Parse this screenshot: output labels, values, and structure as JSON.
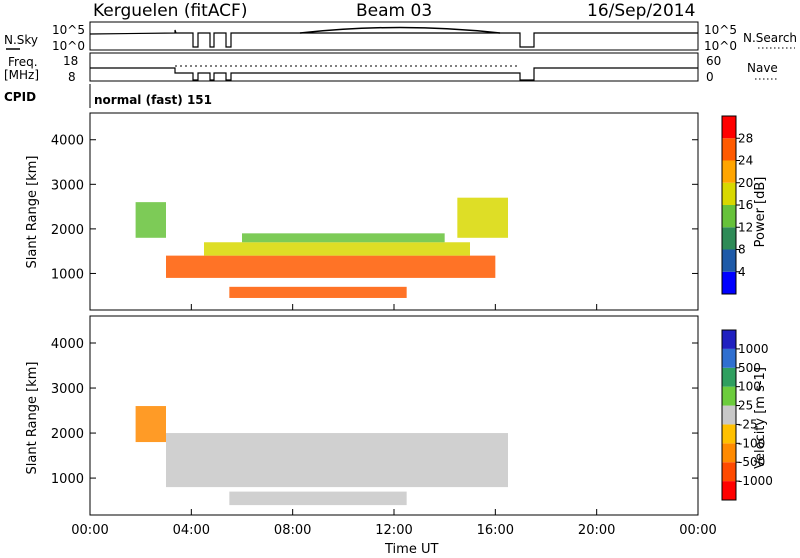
{
  "header": {
    "station": "Kerguelen (fitACF)",
    "beam": "Beam 03",
    "date": "16/Sep/2014"
  },
  "noise_panel": {
    "left_label": "N.Sky",
    "left_ticks": [
      "10^5",
      "10^0"
    ],
    "right_label": "N.Search",
    "right_ticks": [
      "10^5",
      "10^0"
    ]
  },
  "freq_panel": {
    "left_label_1": "Freq.",
    "left_label_2": "[MHz]",
    "left_ticks": [
      "18",
      "8"
    ],
    "right_label": "Nave",
    "right_ticks": [
      "60",
      "0"
    ]
  },
  "cpid": {
    "label": "CPID",
    "value": "normal (fast) 151"
  },
  "colors": {
    "power_scale": [
      "#0000ff",
      "#1e5aa8",
      "#2e8b57",
      "#66c23a",
      "#d8d800",
      "#ffa500",
      "#ff5a00",
      "#ff0000"
    ],
    "velocity_scale": [
      "#2020c0",
      "#2f6fd0",
      "#2f9f5f",
      "#6ccc3c",
      "#c8c8c8",
      "#ffc000",
      "#ff8a00",
      "#ff4a00",
      "#ff0000"
    ]
  },
  "chart_data": [
    {
      "type": "heatmap",
      "panel": "power",
      "ylabel": "Slant Range [km]",
      "yticks": [
        "1000",
        "2000",
        "3000",
        "4000"
      ],
      "ylim": [
        180,
        4600
      ],
      "xlim": [
        0,
        24
      ],
      "xticks": [
        "00:00",
        "04:00",
        "08:00",
        "12:00",
        "16:00",
        "20:00",
        "00:00"
      ],
      "colorbar": {
        "label": "Power [dB]",
        "ticks": [
          "4",
          "8",
          "12",
          "16",
          "20",
          "24",
          "28"
        ]
      },
      "regions": [
        {
          "t": [
            3.0,
            16.0
          ],
          "r": [
            900,
            1400
          ],
          "value": 26
        },
        {
          "t": [
            4.5,
            15.0
          ],
          "r": [
            1400,
            1700
          ],
          "value": 18
        },
        {
          "t": [
            6.0,
            14.0
          ],
          "r": [
            1700,
            1900
          ],
          "value": 12
        },
        {
          "t": [
            5.5,
            12.5
          ],
          "r": [
            450,
            700
          ],
          "value": 24
        },
        {
          "t": [
            1.8,
            3.0
          ],
          "r": [
            1800,
            2600
          ],
          "value": 14
        },
        {
          "t": [
            14.5,
            16.5
          ],
          "r": [
            1800,
            2700
          ],
          "value": 16
        }
      ]
    },
    {
      "type": "heatmap",
      "panel": "velocity",
      "ylabel": "Slant Range [km]",
      "yticks": [
        "1000",
        "2000",
        "3000",
        "4000"
      ],
      "ylim": [
        180,
        4600
      ],
      "xlim": [
        0,
        24
      ],
      "xticks": [
        "00:00",
        "04:00",
        "08:00",
        "12:00",
        "16:00",
        "20:00",
        "00:00"
      ],
      "xlabel": "Time UT",
      "colorbar": {
        "label": "Velocity [m s-1]",
        "ticks": [
          "1000",
          "500",
          "100",
          "25",
          "-25",
          "-100",
          "-500",
          "-1000"
        ]
      },
      "regions": [
        {
          "t": [
            3.0,
            16.5
          ],
          "r": [
            800,
            2000
          ],
          "value": 0
        },
        {
          "t": [
            5.5,
            12.5
          ],
          "r": [
            400,
            700
          ],
          "value": 0
        },
        {
          "t": [
            1.8,
            3.0
          ],
          "r": [
            1800,
            2600
          ],
          "value": -300
        }
      ]
    }
  ]
}
